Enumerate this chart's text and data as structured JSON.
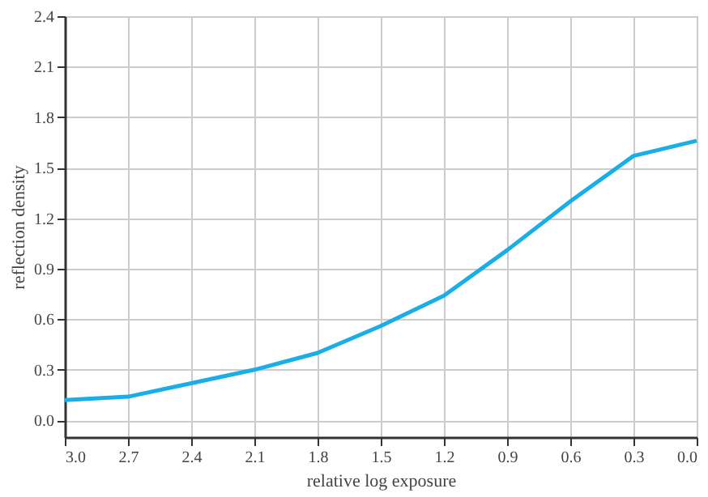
{
  "chart_data": {
    "type": "line",
    "xlabel": "relative log exposure",
    "ylabel": "reflection density",
    "x": [
      3.0,
      2.7,
      2.4,
      2.1,
      1.8,
      1.5,
      1.2,
      0.9,
      0.6,
      0.3,
      0.0
    ],
    "series": [
      {
        "color": "#1aaee8",
        "values": [
          0.12,
          0.14,
          0.22,
          0.3,
          0.4,
          0.56,
          0.74,
          1.01,
          1.3,
          1.57,
          1.66
        ]
      }
    ],
    "xlim": [
      3.0,
      0.0
    ],
    "xticks": [
      {
        "value": 3,
        "label": "3.0"
      },
      2.7,
      2.4,
      2.1,
      1.8,
      1.5,
      1.2,
      0.9,
      0.6,
      0.3,
      {
        "value": 0,
        "label": "0.0"
      }
    ],
    "ylim": [
      -0.1,
      2.4
    ],
    "yticks": [
      {
        "value": 0,
        "label": "0.0"
      },
      0.3,
      0.6,
      0.9,
      1.2,
      1.5,
      1.8,
      2.1,
      2.4
    ],
    "grid": true,
    "marker": "none",
    "line_style": "solid"
  }
}
